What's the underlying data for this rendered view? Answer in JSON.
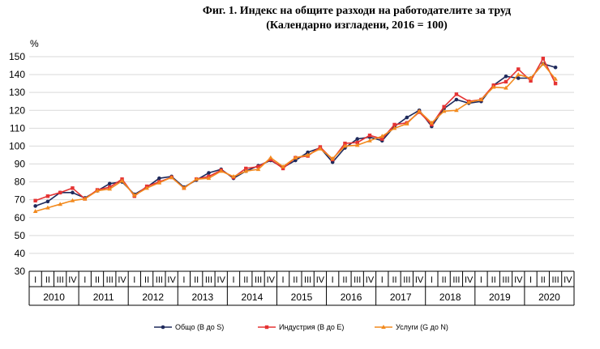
{
  "title": "Фиг. 1. Индекс на общите разходи на работодателите за труд",
  "subtitle": "(Календарно изгладени, 2016 = 100)",
  "chart_data": {
    "type": "line",
    "title": "Фиг. 1. Индекс на общите разходи на работодателите за труд",
    "subtitle": "(Календарно изгладени, 2016 = 100)",
    "ylabel": "%",
    "ylim": [
      30,
      150
    ],
    "yticks": [
      30,
      40,
      50,
      60,
      70,
      80,
      90,
      100,
      110,
      120,
      130,
      140,
      150
    ],
    "grid": true,
    "legend_position": "bottom",
    "quarters": [
      "I",
      "II",
      "III",
      "IV"
    ],
    "years": [
      "2010",
      "2011",
      "2012",
      "2013",
      "2014",
      "2015",
      "2016",
      "2017",
      "2018",
      "2019",
      "2020"
    ],
    "x": [
      "2010-I",
      "2010-II",
      "2010-III",
      "2010-IV",
      "2011-I",
      "2011-II",
      "2011-III",
      "2011-IV",
      "2012-I",
      "2012-II",
      "2012-III",
      "2012-IV",
      "2013-I",
      "2013-II",
      "2013-III",
      "2013-IV",
      "2014-I",
      "2014-II",
      "2014-III",
      "2014-IV",
      "2015-I",
      "2015-II",
      "2015-III",
      "2015-IV",
      "2016-I",
      "2016-II",
      "2016-III",
      "2016-IV",
      "2017-I",
      "2017-II",
      "2017-III",
      "2017-IV",
      "2018-I",
      "2018-II",
      "2018-III",
      "2018-IV",
      "2019-I",
      "2019-II",
      "2019-III",
      "2019-IV",
      "2020-I",
      "2020-II",
      "2020-III"
    ],
    "series": [
      {
        "name": "Общо (B до S)",
        "color": "#1f2a5c",
        "marker": "circle",
        "values": [
          66.5,
          69,
          74,
          74,
          71,
          75,
          79,
          80,
          73,
          77,
          82,
          83,
          77,
          81,
          85,
          87,
          82,
          86,
          89,
          92,
          88,
          92,
          96.5,
          99,
          91,
          99,
          104,
          105,
          103,
          111,
          116,
          120,
          111,
          121,
          126,
          124,
          125,
          134,
          139,
          138,
          138,
          146,
          144
        ]
      },
      {
        "name": "Индустрия (B до E)",
        "color": "#e53333",
        "marker": "square",
        "values": [
          69.5,
          72,
          74,
          76.5,
          70.5,
          75.5,
          77,
          81.5,
          72,
          77.5,
          80,
          82.5,
          76.5,
          81.5,
          83,
          86.5,
          82.5,
          87.5,
          88.5,
          92.5,
          87.5,
          93.5,
          94.5,
          99.5,
          92.5,
          101.5,
          102,
          106,
          104,
          112,
          113,
          119,
          112,
          122,
          129,
          125,
          126,
          134,
          136,
          143,
          136.5,
          149,
          135
        ]
      },
      {
        "name": "Услуги (G до N)",
        "color": "#f28a1e",
        "marker": "triangle",
        "values": [
          63.5,
          65.5,
          67.5,
          69.5,
          70.5,
          75,
          76,
          80.5,
          72.5,
          76.5,
          79.5,
          82.5,
          76.5,
          81.5,
          82,
          86,
          83,
          86,
          87,
          93.5,
          88.5,
          93.5,
          95,
          98.5,
          93,
          100,
          100.5,
          103,
          105.5,
          110,
          112.5,
          119.5,
          113,
          119.5,
          120,
          124.5,
          126,
          133,
          132.5,
          140,
          138,
          146,
          137.5
        ]
      }
    ]
  }
}
